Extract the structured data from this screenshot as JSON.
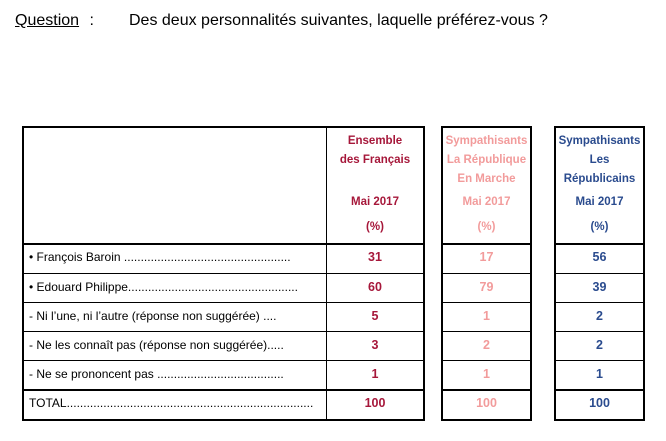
{
  "question": {
    "label": "Question",
    "colon": ":",
    "text": "Des deux personnalités suivantes, laquelle préférez-vous ?"
  },
  "columns": [
    {
      "id": "ensemble",
      "header_lines": [
        "Ensemble",
        "des Français",
        "",
        "Mai 2017"
      ],
      "unit": "(%)",
      "color": "#a6173a"
    },
    {
      "id": "lrem",
      "header_lines": [
        "Sympathisants",
        "La République",
        "En Marche",
        "Mai 2017"
      ],
      "unit": "(%)",
      "color": "#f29b9b"
    },
    {
      "id": "lr",
      "header_lines": [
        "Sympathisants",
        "Les",
        "Républicains",
        "Mai 2017"
      ],
      "unit": "(%)",
      "color": "#2a4b8e"
    }
  ],
  "rows": [
    {
      "label": "•  François Baroin ..................................................",
      "values": [
        "31",
        "17",
        "56"
      ]
    },
    {
      "label": "•  Edouard Philippe...................................................",
      "values": [
        "60",
        "79",
        "39"
      ]
    },
    {
      "label": "   -   Ni l’une, ni l’autre (réponse non suggérée) ....",
      "values": [
        "5",
        "1",
        "2"
      ]
    },
    {
      "label": "   -   Ne les connaît pas (réponse non suggérée).....",
      "values": [
        "3",
        "2",
        "2"
      ]
    },
    {
      "label": "   -   Ne se prononcent pas  ......................................",
      "values": [
        "1",
        "1",
        "1"
      ]
    },
    {
      "label": "      TOTAL..........................................................................",
      "values": [
        "100",
        "100",
        "100"
      ]
    }
  ]
}
